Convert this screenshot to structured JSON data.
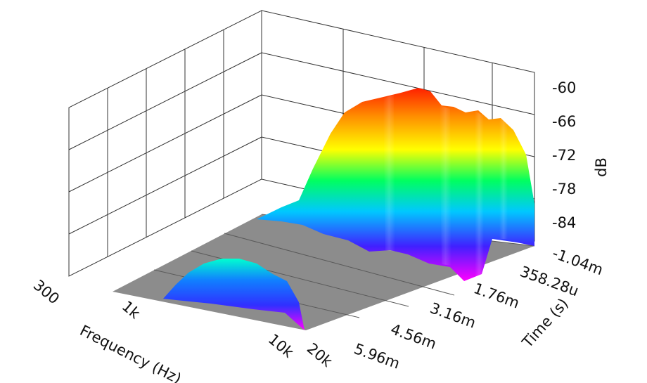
{
  "chart_data": {
    "type": "surface-3d",
    "xlabel": "Frequency (Hz)",
    "ylabel": "Time (s)",
    "zlabel": "dB",
    "x_ticks": [
      "300",
      "1k",
      "10k",
      "20k"
    ],
    "y_ticks": [
      "-1.04m",
      "358.28u",
      "1.76m",
      "3.16m",
      "4.56m",
      "5.96m"
    ],
    "z_ticks": [
      "-60",
      "-66",
      "-72",
      "-78",
      "-84"
    ],
    "x_scale": "log",
    "x_range": [
      300,
      20000
    ],
    "z_range": [
      -88,
      -58
    ],
    "floor_color": "#8c8c8c",
    "colormap": [
      "#ff00ff",
      "#2020ff",
      "#00ffff",
      "#00ff40",
      "#ffff00",
      "#ff9000",
      "#ff2000"
    ],
    "series": [
      {
        "freq_min": 700,
        "freq_max": 13000,
        "peak_db": -60,
        "time_range": [
          "-1.04m",
          "3.16m"
        ]
      },
      {
        "freq_min": 1300,
        "freq_max": 18000,
        "peak_db": -76,
        "time_range": [
          "4.56m",
          "5.96m"
        ]
      }
    ]
  }
}
